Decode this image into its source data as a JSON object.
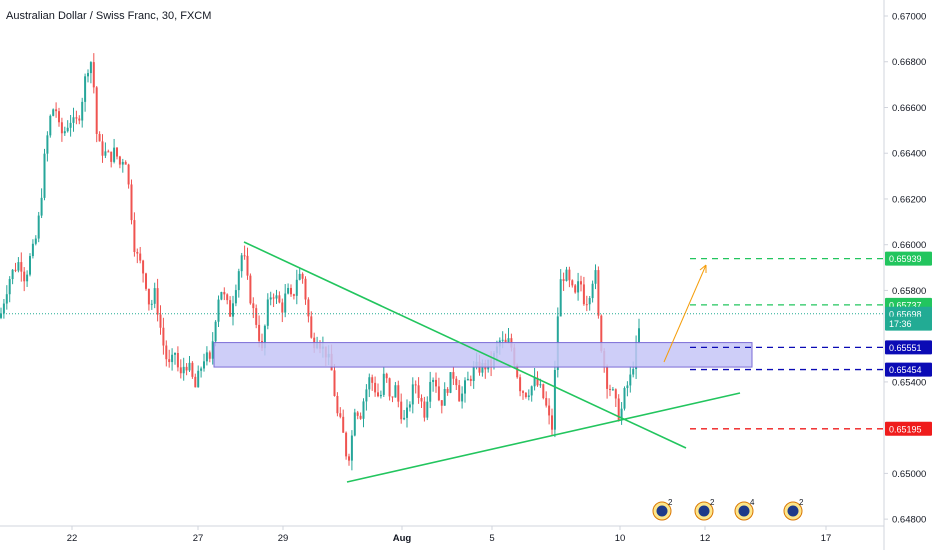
{
  "title": "Australian Dollar / Swiss Franc, 30, FXCM",
  "chart_data": {
    "type": "candlestick",
    "title": "Australian Dollar / Swiss Franc, 30, FXCM",
    "instrument": "AUD/CHF",
    "timeframe": "30",
    "source": "FXCM",
    "y_ticks": [
      "0.67000",
      "0.66800",
      "0.66600",
      "0.66400",
      "0.66200",
      "0.66000",
      "0.65800",
      "0.65400",
      "0.65000",
      "0.64800"
    ],
    "ylim": [
      0.6477,
      0.6707
    ],
    "x_ticks": [
      {
        "label": "22",
        "bold": false
      },
      {
        "label": "27",
        "bold": false
      },
      {
        "label": "29",
        "bold": false
      },
      {
        "label": "Aug",
        "bold": true
      },
      {
        "label": "5",
        "bold": false
      },
      {
        "label": "10",
        "bold": false
      },
      {
        "label": "12",
        "bold": false
      },
      {
        "label": "17",
        "bold": false
      }
    ],
    "grid": false,
    "current_price_line": 0.65698,
    "price_path": [
      [
        0,
        0.6568
      ],
      [
        5,
        0.6578
      ],
      [
        10,
        0.6586
      ],
      [
        15,
        0.659
      ],
      [
        20,
        0.6593
      ],
      [
        25,
        0.6585
      ],
      [
        30,
        0.6594
      ],
      [
        35,
        0.66
      ],
      [
        40,
        0.6615
      ],
      [
        45,
        0.664
      ],
      [
        50,
        0.6655
      ],
      [
        55,
        0.6662
      ],
      [
        60,
        0.6648
      ],
      [
        65,
        0.665
      ],
      [
        70,
        0.6655
      ],
      [
        75,
        0.6652
      ],
      [
        80,
        0.6658
      ],
      [
        85,
        0.6672
      ],
      [
        90,
        0.6682
      ],
      [
        93,
        0.6676
      ],
      [
        96,
        0.665
      ],
      [
        100,
        0.6642
      ],
      [
        105,
        0.664
      ],
      [
        110,
        0.6638
      ],
      [
        115,
        0.6641
      ],
      [
        120,
        0.6635
      ],
      [
        125,
        0.664
      ],
      [
        130,
        0.662
      ],
      [
        135,
        0.6597
      ],
      [
        140,
        0.6592
      ],
      [
        145,
        0.6586
      ],
      [
        150,
        0.6572
      ],
      [
        155,
        0.6579
      ],
      [
        160,
        0.6565
      ],
      [
        165,
        0.6552
      ],
      [
        170,
        0.6546
      ],
      [
        175,
        0.6553
      ],
      [
        180,
        0.6541
      ],
      [
        185,
        0.6549
      ],
      [
        190,
        0.6545
      ],
      [
        195,
        0.6537
      ],
      [
        200,
        0.6545
      ],
      [
        205,
        0.6552
      ],
      [
        210,
        0.6548
      ],
      [
        215,
        0.6567
      ],
      [
        220,
        0.6582
      ],
      [
        225,
        0.6576
      ],
      [
        230,
        0.657
      ],
      [
        235,
        0.6581
      ],
      [
        240,
        0.6592
      ],
      [
        243,
        0.6598
      ],
      [
        247,
        0.6585
      ],
      [
        252,
        0.6573
      ],
      [
        257,
        0.6565
      ],
      [
        262,
        0.6553
      ],
      [
        267,
        0.6572
      ],
      [
        272,
        0.658
      ],
      [
        277,
        0.6576
      ],
      [
        282,
        0.6572
      ],
      [
        287,
        0.658
      ],
      [
        292,
        0.6575
      ],
      [
        297,
        0.6586
      ],
      [
        302,
        0.6587
      ],
      [
        307,
        0.6573
      ],
      [
        312,
        0.6556
      ],
      [
        317,
        0.656
      ],
      [
        322,
        0.6555
      ],
      [
        327,
        0.6552
      ],
      [
        332,
        0.6544
      ],
      [
        337,
        0.6526
      ],
      [
        342,
        0.652
      ],
      [
        346,
        0.6509
      ],
      [
        350,
        0.6508
      ],
      [
        355,
        0.653
      ],
      [
        360,
        0.6525
      ],
      [
        365,
        0.6535
      ],
      [
        370,
        0.6542
      ],
      [
        375,
        0.6537
      ],
      [
        380,
        0.6532
      ],
      [
        385,
        0.6545
      ],
      [
        390,
        0.6531
      ],
      [
        395,
        0.6538
      ],
      [
        400,
        0.6528
      ],
      [
        405,
        0.6522
      ],
      [
        410,
        0.6532
      ],
      [
        415,
        0.654
      ],
      [
        420,
        0.6533
      ],
      [
        425,
        0.6526
      ],
      [
        430,
        0.6543
      ],
      [
        435,
        0.6542
      ],
      [
        440,
        0.653
      ],
      [
        445,
        0.6535
      ],
      [
        450,
        0.6541
      ],
      [
        455,
        0.6544
      ],
      [
        460,
        0.6532
      ],
      [
        465,
        0.6538
      ],
      [
        470,
        0.6542
      ],
      [
        475,
        0.6546
      ],
      [
        480,
        0.6546
      ],
      [
        485,
        0.6547
      ],
      [
        490,
        0.6547
      ],
      [
        495,
        0.6552
      ],
      [
        500,
        0.6558
      ],
      [
        505,
        0.6556
      ],
      [
        510,
        0.6558
      ],
      [
        515,
        0.6548
      ],
      [
        520,
        0.6538
      ],
      [
        525,
        0.6535
      ],
      [
        530,
        0.6537
      ],
      [
        535,
        0.654
      ],
      [
        540,
        0.6537
      ],
      [
        545,
        0.6531
      ],
      [
        550,
        0.6522
      ],
      [
        553,
        0.6519
      ],
      [
        556,
        0.6558
      ],
      [
        560,
        0.6583
      ],
      [
        565,
        0.6588
      ],
      [
        570,
        0.6582
      ],
      [
        575,
        0.6577
      ],
      [
        580,
        0.6585
      ],
      [
        585,
        0.6574
      ],
      [
        590,
        0.658
      ],
      [
        595,
        0.659
      ],
      [
        598,
        0.6569
      ],
      [
        602,
        0.6553
      ],
      [
        607,
        0.654
      ],
      [
        612,
        0.6536
      ],
      [
        617,
        0.6528
      ],
      [
        620,
        0.6524
      ],
      [
        625,
        0.6536
      ],
      [
        630,
        0.6541
      ],
      [
        635,
        0.6552
      ],
      [
        640,
        0.6565
      ],
      [
        642,
        0.657
      ]
    ],
    "right_labels": [
      {
        "value": "0.65939",
        "price": 0.65939,
        "bg": "#22c55e",
        "color": "#ffffff"
      },
      {
        "value": "0.65737",
        "price": 0.65737,
        "bg": "#22c55e",
        "color": "#ffffff"
      },
      {
        "value": "0.65698",
        "price": 0.65698,
        "bg": "#22ab94",
        "color": "#ffffff"
      },
      {
        "value": "17:36",
        "price": 0.65655,
        "bg": "#22ab94",
        "color": "#ffffff"
      },
      {
        "value": "0.65551",
        "price": 0.65551,
        "bg": "#0b0bb5",
        "color": "#ffffff"
      },
      {
        "value": "0.65454",
        "price": 0.65454,
        "bg": "#0b0bb5",
        "color": "#ffffff"
      },
      {
        "value": "0.65195",
        "price": 0.65195,
        "bg": "#ef1c1c",
        "color": "#ffffff"
      }
    ],
    "target_lines": [
      {
        "price": 0.65939,
        "color": "#22c55e"
      },
      {
        "price": 0.65737,
        "color": "#22c55e"
      },
      {
        "price": 0.65551,
        "color": "#0b0bb5"
      },
      {
        "price": 0.65454,
        "color": "#0b0bb5"
      },
      {
        "price": 0.65195,
        "color": "#ef1c1c"
      }
    ],
    "zone": {
      "top": 0.65572,
      "bottom": 0.65465,
      "fill": "#c6c5f7",
      "stroke": "#7b6bd6"
    },
    "projection_arrow_color": "#f59e0b",
    "trendline_color": "#22c55e",
    "events": [
      {
        "count": "2"
      },
      {
        "count": "2"
      },
      {
        "count": "4"
      },
      {
        "count": "2"
      }
    ],
    "colors": {
      "up": "#26a69a",
      "down": "#ef5350"
    }
  }
}
